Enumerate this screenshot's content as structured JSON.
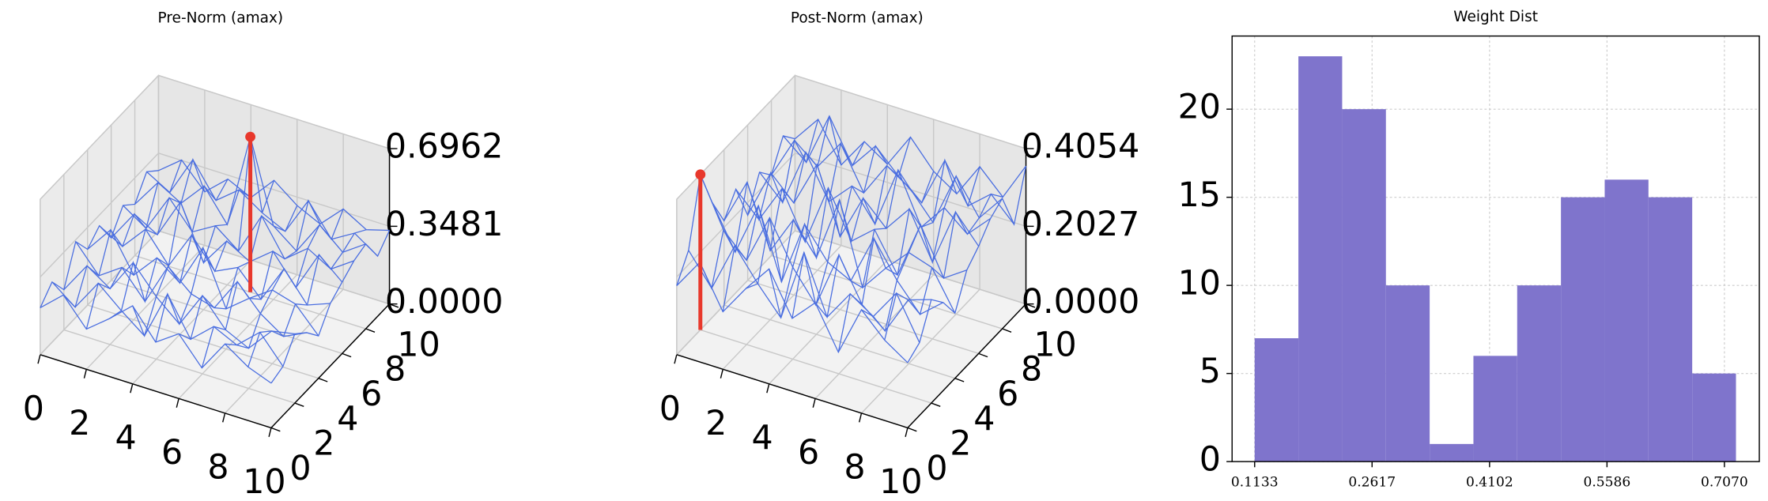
{
  "chart_data": [
    {
      "type": "wireframe3d",
      "title": "Pre-Norm (amax)",
      "color": "#4a6ee0",
      "peak_color": "#e8382c",
      "xlim": [
        0,
        10
      ],
      "ylim": [
        0,
        10
      ],
      "zlim": [
        0,
        0.6962
      ],
      "xticks": [
        0,
        2,
        4,
        6,
        8,
        10
      ],
      "yticks": [
        0,
        2,
        4,
        6,
        8,
        10
      ],
      "zticks": [
        {
          "value": 0,
          "label": "0.0000"
        },
        0.3481,
        0.6962
      ],
      "x": [
        0,
        1,
        2,
        3,
        4,
        5,
        6,
        7,
        8,
        9,
        10
      ],
      "y": [
        0,
        1,
        2,
        3,
        4,
        5,
        6,
        7,
        8,
        9,
        10
      ],
      "z": [
        [
          0.21,
          0.3,
          0.18,
          0.26,
          0.35,
          0.22,
          0.29,
          0.17,
          0.31,
          0.24,
          0.2
        ],
        [
          0.27,
          0.19,
          0.33,
          0.24,
          0.16,
          0.38,
          0.21,
          0.3,
          0.25,
          0.34,
          0.22
        ],
        [
          0.18,
          0.32,
          0.25,
          0.4,
          0.28,
          0.19,
          0.35,
          0.23,
          0.18,
          0.29,
          0.31
        ],
        [
          0.34,
          0.22,
          0.29,
          0.17,
          0.36,
          0.27,
          0.24,
          0.39,
          0.28,
          0.21,
          0.26
        ],
        [
          0.25,
          0.37,
          0.2,
          0.31,
          0.23,
          0.42,
          0.18,
          0.26,
          0.33,
          0.3,
          0.19
        ],
        [
          0.3,
          0.24,
          0.35,
          0.22,
          0.39,
          0.26,
          0.31,
          0.2,
          0.37,
          0.24,
          0.28
        ],
        [
          0.19,
          0.33,
          0.27,
          0.45,
          0.21,
          0.34,
          0.28,
          0.36,
          0.23,
          0.41,
          0.32
        ],
        [
          0.28,
          0.21,
          0.38,
          0.26,
          0.32,
          0.24,
          0.43,
          0.27,
          0.35,
          0.29,
          0.36
        ],
        [
          0.23,
          0.36,
          0.3,
          0.41,
          0.27,
          0.6962,
          0.33,
          0.25,
          0.4,
          0.31,
          0.38
        ],
        [
          0.32,
          0.26,
          0.44,
          0.29,
          0.37,
          0.3,
          0.25,
          0.42,
          0.28,
          0.34,
          0.27
        ],
        [
          0.27,
          0.35,
          0.24,
          0.33,
          0.28,
          0.39,
          0.31,
          0.26,
          0.36,
          0.3,
          0.33
        ]
      ]
    },
    {
      "type": "wireframe3d",
      "title": "Post-Norm (amax)",
      "color": "#4a6ee0",
      "peak_color": "#e8382c",
      "xlim": [
        0,
        10
      ],
      "ylim": [
        0,
        10
      ],
      "zlim": [
        0,
        0.4054
      ],
      "xticks": [
        0,
        2,
        4,
        6,
        8,
        10
      ],
      "yticks": [
        0,
        2,
        4,
        6,
        8,
        10
      ],
      "zticks": [
        {
          "value": 0,
          "label": "0.0000"
        },
        0.2027,
        0.4054
      ],
      "x": [
        0,
        1,
        2,
        3,
        4,
        5,
        6,
        7,
        8,
        9,
        10
      ],
      "y": [
        0,
        1,
        2,
        3,
        4,
        5,
        6,
        7,
        8,
        9,
        10
      ],
      "z": [
        [
          0.18,
          0.26,
          0.15,
          0.23,
          0.3,
          0.19,
          0.25,
          0.14,
          0.27,
          0.21,
          0.17
        ],
        [
          0.24,
          0.16,
          0.29,
          0.21,
          0.14,
          0.33,
          0.18,
          0.26,
          0.22,
          0.3,
          0.19
        ],
        [
          0.4054,
          0.28,
          0.22,
          0.35,
          0.24,
          0.16,
          0.31,
          0.2,
          0.15,
          0.25,
          0.27
        ],
        [
          0.3,
          0.19,
          0.33,
          0.15,
          0.32,
          0.24,
          0.21,
          0.34,
          0.25,
          0.18,
          0.23
        ],
        [
          0.22,
          0.34,
          0.18,
          0.28,
          0.2,
          0.37,
          0.16,
          0.23,
          0.29,
          0.27,
          0.17
        ],
        [
          0.27,
          0.21,
          0.31,
          0.19,
          0.35,
          0.23,
          0.28,
          0.18,
          0.33,
          0.21,
          0.25
        ],
        [
          0.17,
          0.3,
          0.24,
          0.36,
          0.19,
          0.31,
          0.25,
          0.32,
          0.2,
          0.35,
          0.28
        ],
        [
          0.25,
          0.19,
          0.34,
          0.23,
          0.29,
          0.21,
          0.37,
          0.24,
          0.31,
          0.26,
          0.32
        ],
        [
          0.21,
          0.32,
          0.27,
          0.35,
          0.24,
          0.33,
          0.29,
          0.22,
          0.36,
          0.27,
          0.34
        ],
        [
          0.28,
          0.23,
          0.37,
          0.26,
          0.33,
          0.27,
          0.22,
          0.35,
          0.25,
          0.3,
          0.24
        ],
        [
          0.24,
          0.31,
          0.21,
          0.29,
          0.25,
          0.34,
          0.27,
          0.23,
          0.32,
          0.26,
          0.36
        ]
      ]
    },
    {
      "type": "histogram",
      "title": "Weight Dist",
      "color": "#7f74cc",
      "bins": [
        0.1133,
        0.1686,
        0.2239,
        0.2792,
        0.3345,
        0.3898,
        0.4451,
        0.5004,
        0.5557,
        0.611,
        0.6663,
        0.7216
      ],
      "values": [
        7,
        23,
        20,
        10,
        1,
        6,
        10,
        15,
        16,
        15,
        5
      ],
      "xlim": [
        0.0848,
        0.7511
      ],
      "ylim": [
        0,
        24.15
      ],
      "xticks": [
        0.1133,
        0.2617,
        0.4102,
        0.5586,
        {
          "value": 0.707,
          "label": "0.7070"
        }
      ],
      "yticks": [
        0,
        5,
        10,
        15,
        20
      ],
      "grid": true
    }
  ]
}
